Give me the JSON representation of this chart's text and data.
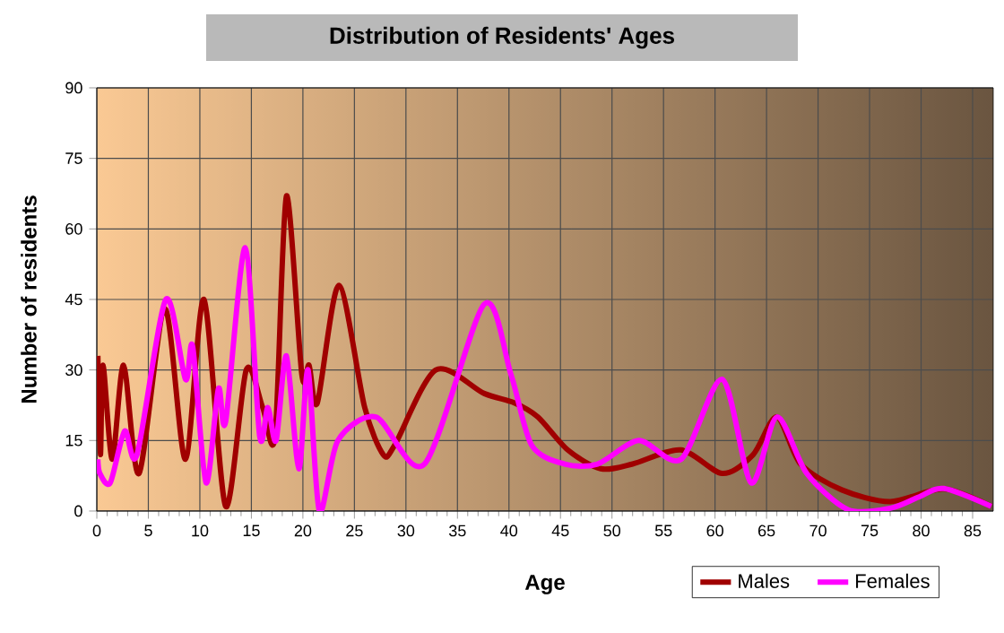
{
  "chart_data": {
    "type": "line",
    "title": "Distribution of Residents' Ages",
    "xlabel": "Age",
    "ylabel": "Number of residents",
    "xlim": [
      0,
      87
    ],
    "xticks": [
      0,
      5,
      10,
      15,
      20,
      25,
      30,
      35,
      40,
      45,
      50,
      55,
      60,
      65,
      70,
      75,
      80,
      85
    ],
    "ylim": [
      0,
      90
    ],
    "yticks": [
      0,
      15,
      30,
      45,
      60,
      75,
      90
    ],
    "grid": true,
    "legend": "bottom right",
    "marker": "none",
    "line_style": "solid",
    "series": [
      {
        "name": "Males",
        "color": "#a00000",
        "x": [
          0.1,
          0.35,
          0.6,
          1.5,
          2.6,
          4.1,
          6.6,
          8.6,
          10.4,
          12.5,
          14.5,
          16.1,
          17.3,
          18.4,
          19.9,
          20.6,
          21.4,
          23.5,
          26,
          27.8,
          28.9,
          32.9,
          37.6,
          40.5,
          42.8,
          45.7,
          48.9,
          52,
          56.7,
          60.7,
          63.7,
          66,
          68.3,
          72.3,
          77,
          82.2,
          86.8
        ],
        "values": [
          33,
          12,
          31,
          11,
          31,
          8,
          43,
          11,
          45,
          1,
          30,
          22,
          16,
          67,
          29,
          31,
          23,
          48,
          22,
          12,
          14,
          30,
          25,
          23,
          20,
          13,
          9,
          10,
          13,
          8,
          12,
          20,
          10,
          4.5,
          2,
          4.7,
          1
        ]
      },
      {
        "name": "Females",
        "color": "#ff00ff",
        "x": [
          0.1,
          0.3,
          1.3,
          2.7,
          3.9,
          6.7,
          8.6,
          9.3,
          10.6,
          11.8,
          12.5,
          14.4,
          15.8,
          16.6,
          17.4,
          18.4,
          19.6,
          20.5,
          21.6,
          23.4,
          27.1,
          31.8,
          37.6,
          40.2,
          42.2,
          45.4,
          48.6,
          52.6,
          56.7,
          60.7,
          63.5,
          66,
          68.9,
          72.9,
          77,
          79.8,
          82.2,
          86.8
        ],
        "values": [
          11,
          8,
          6,
          17,
          12,
          45,
          28,
          35,
          6,
          26,
          19,
          56,
          16,
          22,
          15,
          33,
          9,
          30,
          0,
          15,
          20,
          10,
          44,
          29,
          14,
          10,
          10,
          15,
          11,
          28,
          6,
          20,
          8,
          0.3,
          0.6,
          3,
          4.8,
          1
        ]
      }
    ]
  }
}
